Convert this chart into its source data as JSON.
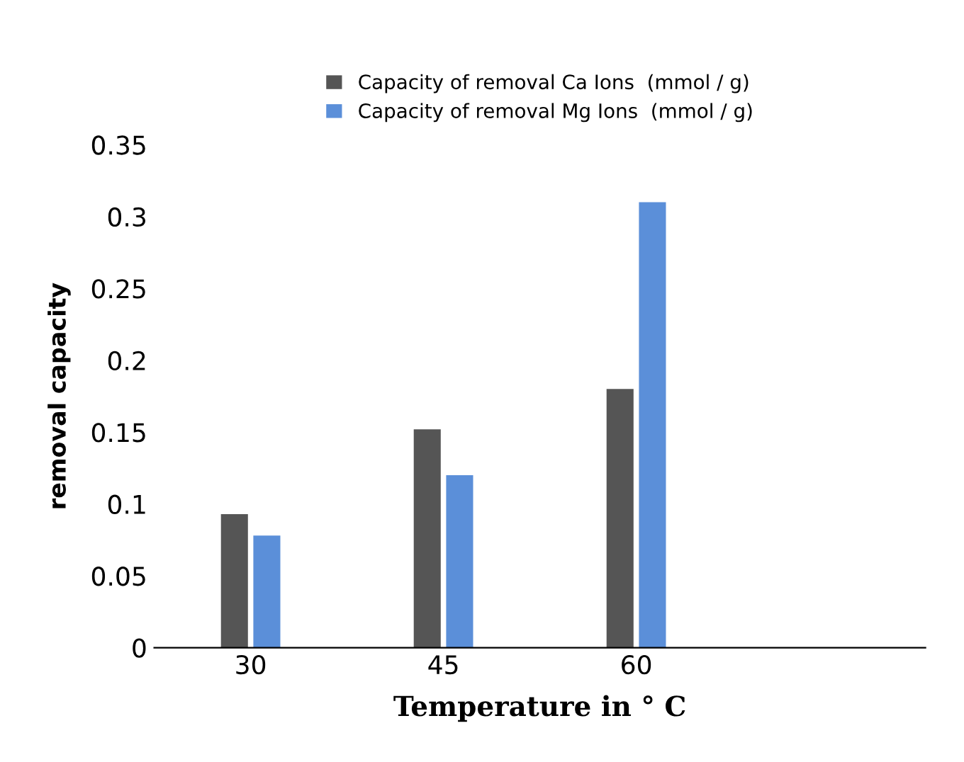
{
  "chart_data": {
    "type": "bar",
    "xlabel": "Temperature in ° C",
    "ylabel": "removal capacity",
    "categories": [
      "30",
      "45",
      "60",
      null
    ],
    "series": [
      {
        "name": "Capacity of removal Ca Ions  (mmol / g)",
        "color": "#555555",
        "values": [
          0.093,
          0.152,
          0.18,
          null
        ]
      },
      {
        "name": "Capacity of removal Mg Ions  (mmol / g)",
        "color": "#5b8fd9",
        "values": [
          0.078,
          0.12,
          0.31,
          null
        ]
      }
    ],
    "ylim": [
      0,
      0.35
    ],
    "yticks": [
      0,
      0.05,
      0.1,
      0.15,
      0.2,
      0.25,
      0.3,
      0.35
    ],
    "grid": false,
    "legend": "top"
  }
}
